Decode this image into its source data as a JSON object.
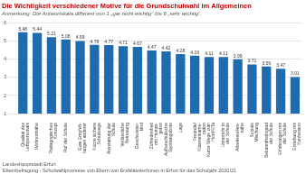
{
  "chart_data": {
    "type": "bar",
    "title": "Die Wichtigkeit verschiedener Motive für die Grundschulwahl im Allgemeinen",
    "subtitle": "Anmerkung: Die Antwortskala differiert von 1 „gar nicht wichtig“ bis 6 „sehr wichtig“.",
    "annotations": [
      "Landeshauptstadt Erfurt",
      "Elternbefragung - Schulwahlprozesse von Eltern von Erstklässler/innen in Erfurt für das Schuljahr 2020/21"
    ],
    "categories": [
      "Qualität des\nLehrpersonals",
      "Wohnortnähe",
      "Pädagogisches\nKonzept",
      "Ruf der Schule",
      "Gute Empfeh-\nlungen anderer",
      "Kurze sichere\nSchulwege",
      "Ausstattung der\nSchule",
      "Verlässliche\nBetreuung",
      "Geschwister-\nkind",
      "Zufriedenheit\nmit Hortan-\ngebot",
      "Außerschulische\nSportangebote",
      "Lage",
      "Freunde/\nKlassenkame-\nraden",
      "Kurze Wege zum\nHort/KiTa",
      "Unterricht in\nder Schule",
      "Arbeitsstellen-\nnähe",
      "Soziale\nMischung",
      "Bekanntheitsgrad\nder Schule",
      "Erfahrungen mit\nder Schule",
      "Erziehung mit\nKonfession"
    ],
    "values": [
      5.48,
      5.44,
      5.21,
      5.08,
      4.99,
      4.78,
      4.77,
      4.71,
      4.67,
      4.47,
      4.42,
      4.28,
      4.19,
      4.11,
      4.11,
      3.99,
      3.71,
      3.59,
      3.47,
      3.01
    ],
    "color": "#1F6BB0",
    "ylim": [
      1,
      6
    ],
    "yticks": [
      1,
      2,
      3,
      4,
      5,
      6
    ],
    "grid": true,
    "data_labels": true
  }
}
